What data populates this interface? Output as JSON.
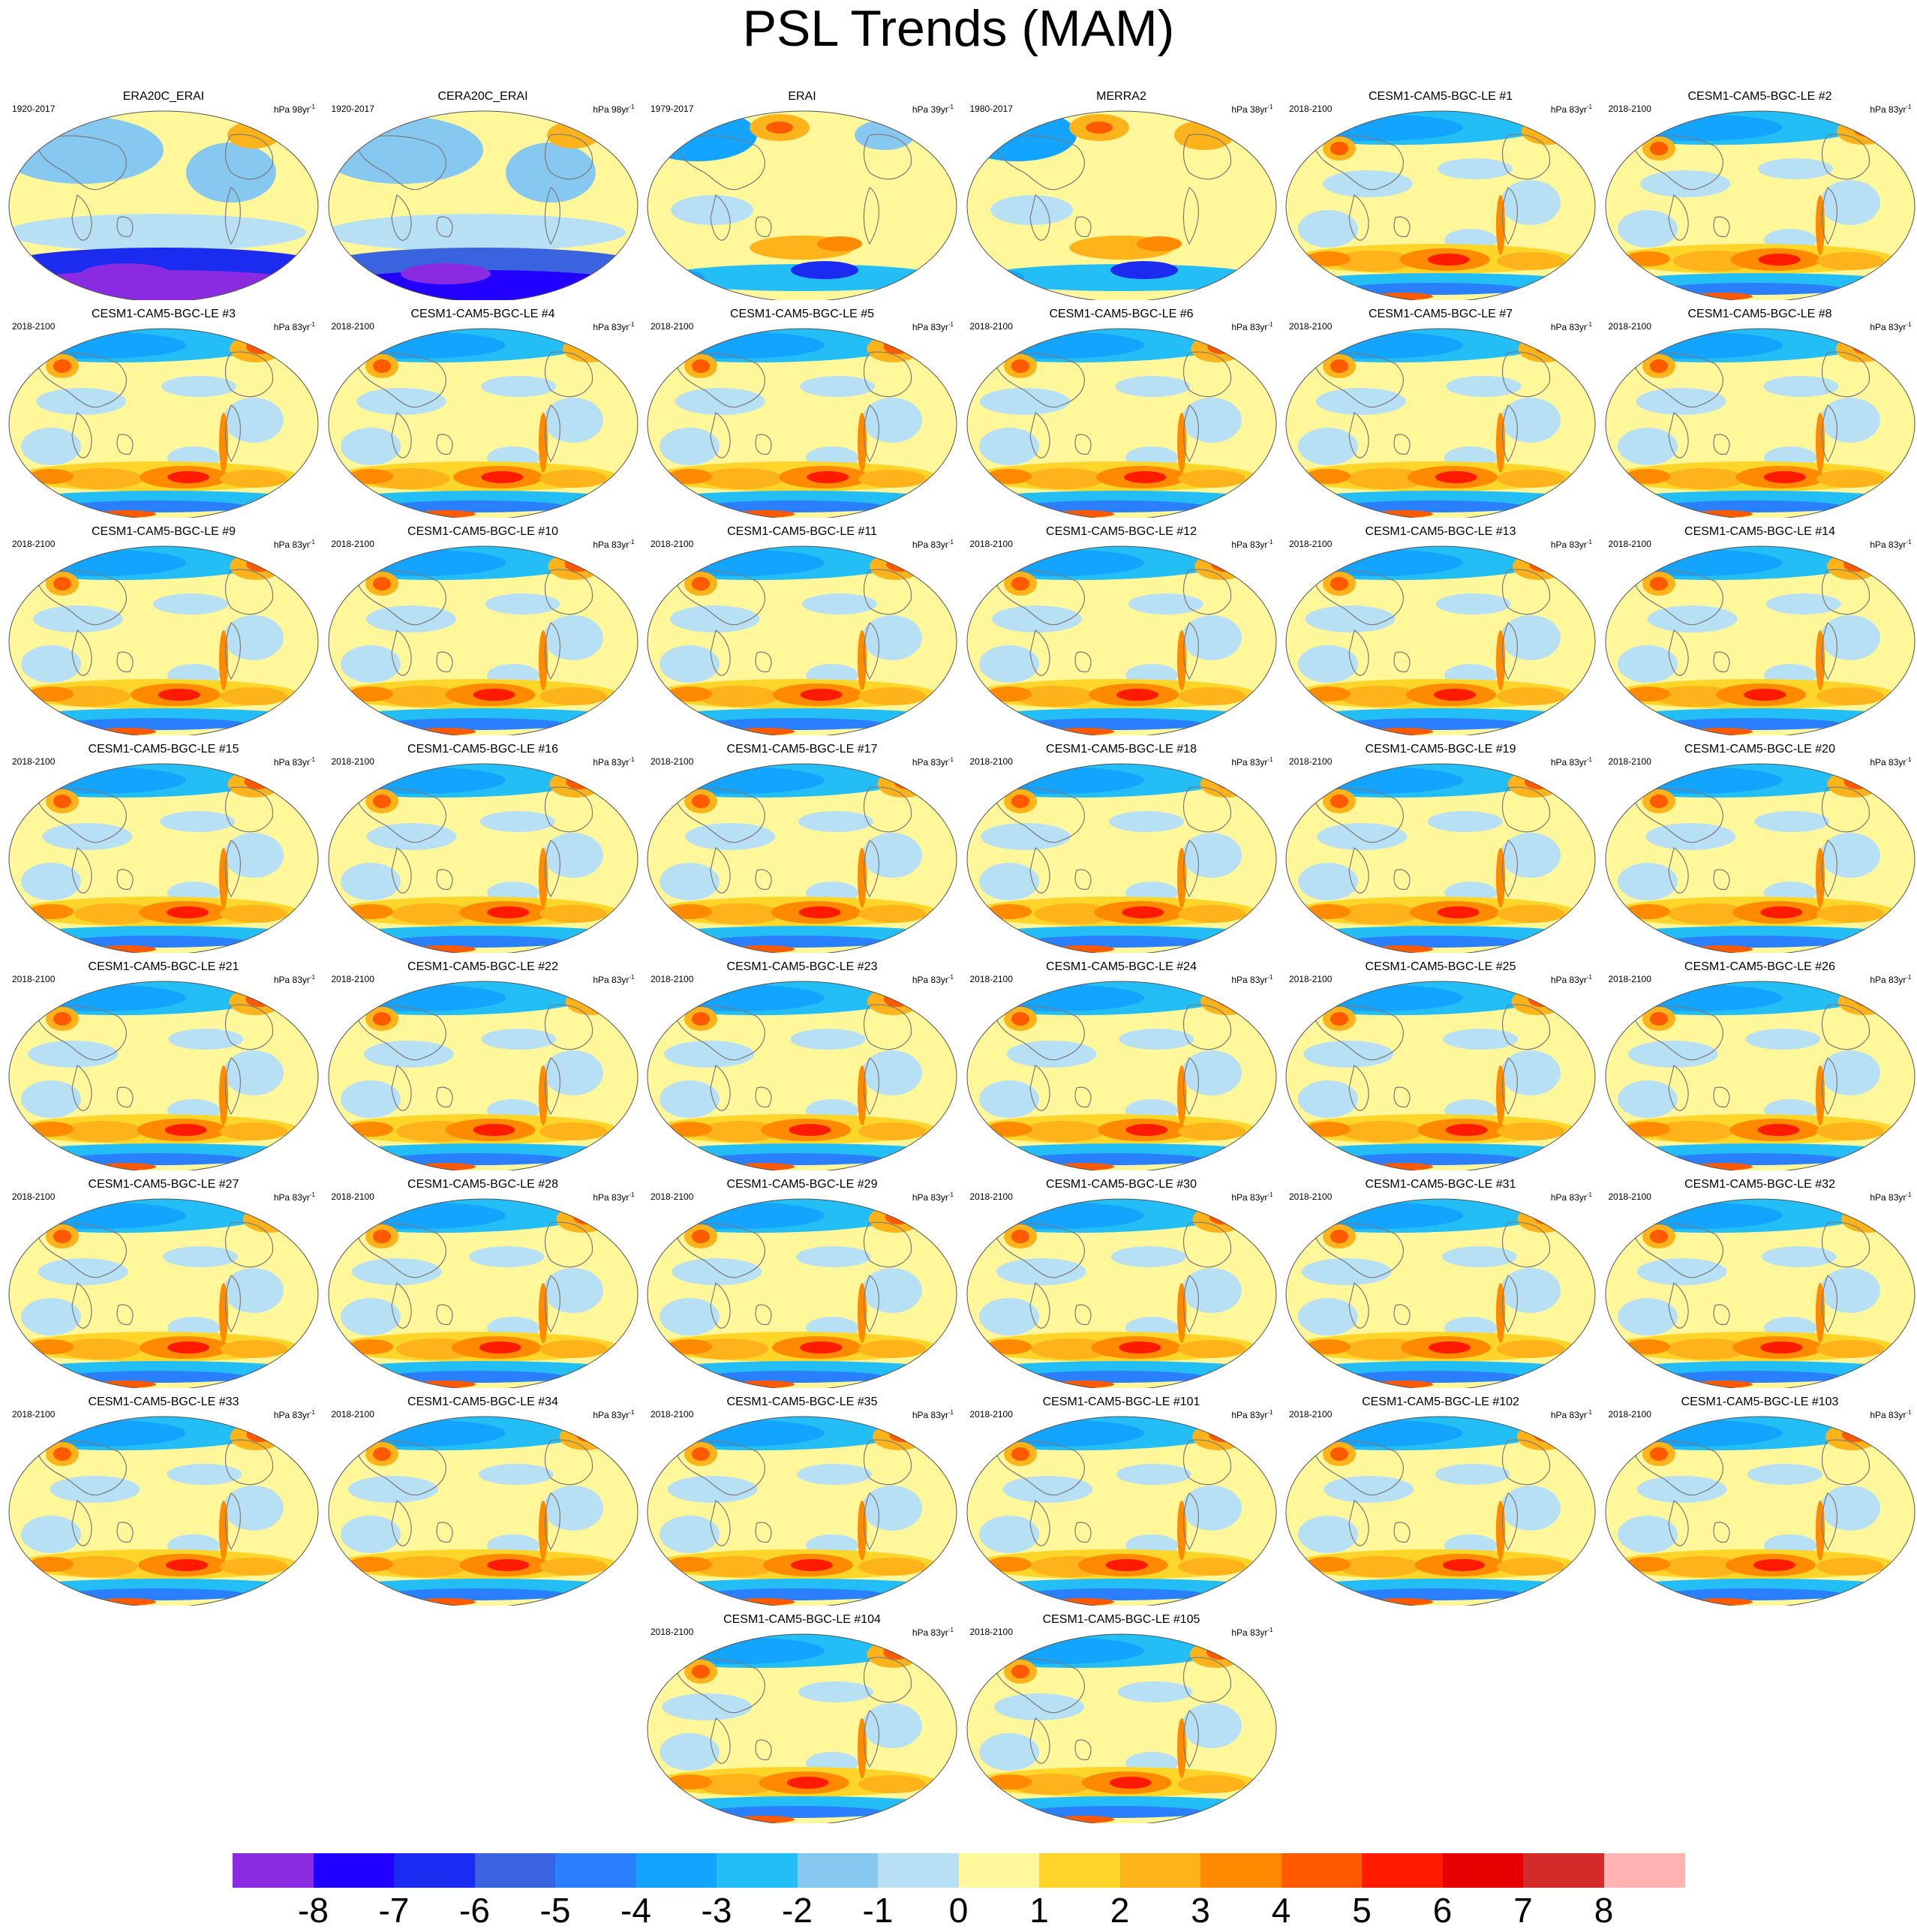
{
  "title": "PSL Trends (MAM)",
  "colorbar": {
    "colors": [
      "#8a2be2",
      "#2200ff",
      "#1b2cf0",
      "#3a63e0",
      "#2a7fff",
      "#12a4ff",
      "#22bef5",
      "#86c8f0",
      "#b7e0f5",
      "#fff799",
      "#ffd52a",
      "#ffb31a",
      "#ff8a00",
      "#ff5a00",
      "#ff1a00",
      "#e60000",
      "#d42a2a",
      "#ffb3b3"
    ],
    "labels": [
      "-8",
      "-7",
      "-6",
      "-5",
      "-4",
      "-3",
      "-2",
      "-1",
      "0",
      "1",
      "2",
      "3",
      "4",
      "5",
      "6",
      "7",
      "8"
    ]
  },
  "panels": [
    {
      "title": "ERA20C_ERAI",
      "years": "1920-2017",
      "units": "hPa 98yr",
      "units_exp": "-1",
      "style": "era20c"
    },
    {
      "title": "CERA20C_ERAI",
      "years": "1920-2017",
      "units": "hPa 98yr",
      "units_exp": "-1",
      "style": "cera20c"
    },
    {
      "title": "ERAI",
      "years": "1979-2017",
      "units": "hPa 39yr",
      "units_exp": "-1",
      "style": "erai"
    },
    {
      "title": "MERRA2",
      "years": "1980-2017",
      "units": "hPa 38yr",
      "units_exp": "-1",
      "style": "merra2"
    },
    {
      "title": "CESM1-CAM5-BGC-LE #1",
      "years": "2018-2100",
      "units": "hPa 83yr",
      "units_exp": "-1",
      "style": "model"
    },
    {
      "title": "CESM1-CAM5-BGC-LE #2",
      "years": "2018-2100",
      "units": "hPa 83yr",
      "units_exp": "-1",
      "style": "model"
    },
    {
      "title": "CESM1-CAM5-BGC-LE #3",
      "years": "2018-2100",
      "units": "hPa 83yr",
      "units_exp": "-1",
      "style": "model"
    },
    {
      "title": "CESM1-CAM5-BGC-LE #4",
      "years": "2018-2100",
      "units": "hPa 83yr",
      "units_exp": "-1",
      "style": "model"
    },
    {
      "title": "CESM1-CAM5-BGC-LE #5",
      "years": "2018-2100",
      "units": "hPa 83yr",
      "units_exp": "-1",
      "style": "model"
    },
    {
      "title": "CESM1-CAM5-BGC-LE #6",
      "years": "2018-2100",
      "units": "hPa 83yr",
      "units_exp": "-1",
      "style": "model"
    },
    {
      "title": "CESM1-CAM5-BGC-LE #7",
      "years": "2018-2100",
      "units": "hPa 83yr",
      "units_exp": "-1",
      "style": "model"
    },
    {
      "title": "CESM1-CAM5-BGC-LE #8",
      "years": "2018-2100",
      "units": "hPa 83yr",
      "units_exp": "-1",
      "style": "model"
    },
    {
      "title": "CESM1-CAM5-BGC-LE #9",
      "years": "2018-2100",
      "units": "hPa 83yr",
      "units_exp": "-1",
      "style": "model"
    },
    {
      "title": "CESM1-CAM5-BGC-LE #10",
      "years": "2018-2100",
      "units": "hPa 83yr",
      "units_exp": "-1",
      "style": "model"
    },
    {
      "title": "CESM1-CAM5-BGC-LE #11",
      "years": "2018-2100",
      "units": "hPa 83yr",
      "units_exp": "-1",
      "style": "model"
    },
    {
      "title": "CESM1-CAM5-BGC-LE #12",
      "years": "2018-2100",
      "units": "hPa 83yr",
      "units_exp": "-1",
      "style": "model"
    },
    {
      "title": "CESM1-CAM5-BGC-LE #13",
      "years": "2018-2100",
      "units": "hPa 83yr",
      "units_exp": "-1",
      "style": "model"
    },
    {
      "title": "CESM1-CAM5-BGC-LE #14",
      "years": "2018-2100",
      "units": "hPa 83yr",
      "units_exp": "-1",
      "style": "model"
    },
    {
      "title": "CESM1-CAM5-BGC-LE #15",
      "years": "2018-2100",
      "units": "hPa 83yr",
      "units_exp": "-1",
      "style": "model"
    },
    {
      "title": "CESM1-CAM5-BGC-LE #16",
      "years": "2018-2100",
      "units": "hPa 83yr",
      "units_exp": "-1",
      "style": "model"
    },
    {
      "title": "CESM1-CAM5-BGC-LE #17",
      "years": "2018-2100",
      "units": "hPa 83yr",
      "units_exp": "-1",
      "style": "model"
    },
    {
      "title": "CESM1-CAM5-BGC-LE #18",
      "years": "2018-2100",
      "units": "hPa 83yr",
      "units_exp": "-1",
      "style": "model"
    },
    {
      "title": "CESM1-CAM5-BGC-LE #19",
      "years": "2018-2100",
      "units": "hPa 83yr",
      "units_exp": "-1",
      "style": "model"
    },
    {
      "title": "CESM1-CAM5-BGC-LE #20",
      "years": "2018-2100",
      "units": "hPa 83yr",
      "units_exp": "-1",
      "style": "model"
    },
    {
      "title": "CESM1-CAM5-BGC-LE #21",
      "years": "2018-2100",
      "units": "hPa 83yr",
      "units_exp": "-1",
      "style": "model"
    },
    {
      "title": "CESM1-CAM5-BGC-LE #22",
      "years": "2018-2100",
      "units": "hPa 83yr",
      "units_exp": "-1",
      "style": "model"
    },
    {
      "title": "CESM1-CAM5-BGC-LE #23",
      "years": "2018-2100",
      "units": "hPa 83yr",
      "units_exp": "-1",
      "style": "model"
    },
    {
      "title": "CESM1-CAM5-BGC-LE #24",
      "years": "2018-2100",
      "units": "hPa 83yr",
      "units_exp": "-1",
      "style": "model"
    },
    {
      "title": "CESM1-CAM5-BGC-LE #25",
      "years": "2018-2100",
      "units": "hPa 83yr",
      "units_exp": "-1",
      "style": "model"
    },
    {
      "title": "CESM1-CAM5-BGC-LE #26",
      "years": "2018-2100",
      "units": "hPa 83yr",
      "units_exp": "-1",
      "style": "model"
    },
    {
      "title": "CESM1-CAM5-BGC-LE #27",
      "years": "2018-2100",
      "units": "hPa 83yr",
      "units_exp": "-1",
      "style": "model"
    },
    {
      "title": "CESM1-CAM5-BGC-LE #28",
      "years": "2018-2100",
      "units": "hPa 83yr",
      "units_exp": "-1",
      "style": "model"
    },
    {
      "title": "CESM1-CAM5-BGC-LE #29",
      "years": "2018-2100",
      "units": "hPa 83yr",
      "units_exp": "-1",
      "style": "model"
    },
    {
      "title": "CESM1-CAM5-BGC-LE #30",
      "years": "2018-2100",
      "units": "hPa 83yr",
      "units_exp": "-1",
      "style": "model"
    },
    {
      "title": "CESM1-CAM5-BGC-LE #31",
      "years": "2018-2100",
      "units": "hPa 83yr",
      "units_exp": "-1",
      "style": "model"
    },
    {
      "title": "CESM1-CAM5-BGC-LE #32",
      "years": "2018-2100",
      "units": "hPa 83yr",
      "units_exp": "-1",
      "style": "model"
    },
    {
      "title": "CESM1-CAM5-BGC-LE #33",
      "years": "2018-2100",
      "units": "hPa 83yr",
      "units_exp": "-1",
      "style": "model"
    },
    {
      "title": "CESM1-CAM5-BGC-LE #34",
      "years": "2018-2100",
      "units": "hPa 83yr",
      "units_exp": "-1",
      "style": "model"
    },
    {
      "title": "CESM1-CAM5-BGC-LE #35",
      "years": "2018-2100",
      "units": "hPa 83yr",
      "units_exp": "-1",
      "style": "model"
    },
    {
      "title": "CESM1-CAM5-BGC-LE #101",
      "years": "2018-2100",
      "units": "hPa 83yr",
      "units_exp": "-1",
      "style": "model"
    },
    {
      "title": "CESM1-CAM5-BGC-LE #102",
      "years": "2018-2100",
      "units": "hPa 83yr",
      "units_exp": "-1",
      "style": "model"
    },
    {
      "title": "CESM1-CAM5-BGC-LE #103",
      "years": "2018-2100",
      "units": "hPa 83yr",
      "units_exp": "-1",
      "style": "model"
    },
    {
      "title": "CESM1-CAM5-BGC-LE #104",
      "years": "2018-2100",
      "units": "hPa 83yr",
      "units_exp": "-1",
      "style": "model"
    },
    {
      "title": "CESM1-CAM5-BGC-LE #105",
      "years": "2018-2100",
      "units": "hPa 83yr",
      "units_exp": "-1",
      "style": "model"
    }
  ]
}
